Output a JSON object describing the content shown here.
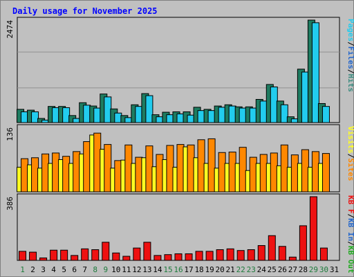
{
  "title": "Daily usage for November 2025",
  "colors": {
    "pages": "#1e7b60",
    "files": "#22ccee",
    "hits": "#3c8c80",
    "visits": "#ffff22",
    "sites": "#ff8800",
    "kbf": "#ee1111",
    "kbin": "#2266cc",
    "kbout": "#22aa22",
    "weekday_tick": "#000000",
    "weekend_tick": "#1e7b3c"
  },
  "chart_data": [
    {
      "type": "bar",
      "ymax_label": "2474",
      "ylim": [
        0,
        2474
      ],
      "legend": [
        {
          "label": "Pages",
          "color": "#22ccee"
        },
        {
          "label": "Files",
          "color": "#2266cc"
        },
        {
          "label": "Hits",
          "color": "#3c8c80"
        }
      ],
      "categories": [
        "1",
        "2",
        "3",
        "4",
        "5",
        "6",
        "7",
        "8",
        "9",
        "10",
        "11",
        "12",
        "13",
        "14",
        "15",
        "16",
        "17",
        "18",
        "19",
        "20",
        "21",
        "22",
        "23",
        "24",
        "25",
        "26",
        "27",
        "28",
        "29",
        "30",
        "31"
      ],
      "series": [
        {
          "name": "Hits",
          "values": [
            320,
            300,
            100,
            390,
            390,
            170,
            480,
            400,
            690,
            330,
            170,
            430,
            700,
            190,
            250,
            260,
            260,
            370,
            320,
            400,
            430,
            380,
            380,
            560,
            920,
            520,
            140,
            1290,
            2474,
            460,
            0
          ]
        },
        {
          "name": "Files",
          "values": [
            260,
            260,
            60,
            360,
            360,
            100,
            420,
            350,
            620,
            230,
            120,
            390,
            650,
            140,
            190,
            210,
            180,
            290,
            290,
            370,
            400,
            350,
            350,
            520,
            860,
            430,
            90,
            1220,
            2410,
            390,
            0
          ]
        }
      ]
    },
    {
      "type": "bar",
      "ymax_label": "136",
      "ylim": [
        0,
        136
      ],
      "legend": [
        {
          "label": "Visits",
          "color": "#ffff22"
        },
        {
          "label": "Sites",
          "color": "#ff8800"
        }
      ],
      "categories": [
        "1",
        "2",
        "3",
        "4",
        "5",
        "6",
        "7",
        "8",
        "9",
        "10",
        "11",
        "12",
        "13",
        "14",
        "15",
        "16",
        "17",
        "18",
        "19",
        "20",
        "21",
        "22",
        "23",
        "24",
        "25",
        "26",
        "27",
        "28",
        "29",
        "30",
        "31"
      ],
      "series": [
        {
          "name": "Visits",
          "values": [
            52,
            57,
            50,
            60,
            68,
            60,
            80,
            120,
            90,
            50,
            67,
            60,
            72,
            53,
            68,
            52,
            95,
            72,
            60,
            50,
            60,
            60,
            45,
            60,
            60,
            55,
            52,
            60,
            52,
            60,
            0
          ]
        },
        {
          "name": "Sites",
          "values": [
            70,
            72,
            80,
            82,
            75,
            85,
            106,
            124,
            100,
            66,
            99,
            73,
            97,
            79,
            98,
            100,
            99,
            110,
            112,
            83,
            84,
            94,
            73,
            79,
            82,
            99,
            78,
            89,
            85,
            81,
            0
          ]
        }
      ]
    },
    {
      "type": "bar",
      "ymax_label": "386",
      "ylim": [
        0,
        386
      ],
      "legend": [
        {
          "label": "KB F",
          "color": "#ee1111"
        },
        {
          "label": "KB In",
          "color": "#2266cc"
        },
        {
          "label": "KB Out",
          "color": "#22aa22"
        }
      ],
      "categories": [
        "1",
        "2",
        "3",
        "4",
        "5",
        "6",
        "7",
        "8",
        "9",
        "10",
        "11",
        "12",
        "13",
        "14",
        "15",
        "16",
        "17",
        "18",
        "19",
        "20",
        "21",
        "22",
        "23",
        "24",
        "25",
        "26",
        "27",
        "28",
        "29",
        "30",
        "31"
      ],
      "series": [
        {
          "name": "KB F",
          "values": [
            55,
            50,
            15,
            62,
            62,
            30,
            70,
            65,
            110,
            45,
            25,
            75,
            110,
            30,
            35,
            40,
            40,
            55,
            55,
            65,
            70,
            60,
            65,
            90,
            150,
            85,
            20,
            210,
            386,
            75,
            0
          ]
        }
      ]
    }
  ],
  "weekend_days": [
    1,
    8,
    9,
    15,
    16,
    22,
    23,
    29,
    30
  ]
}
